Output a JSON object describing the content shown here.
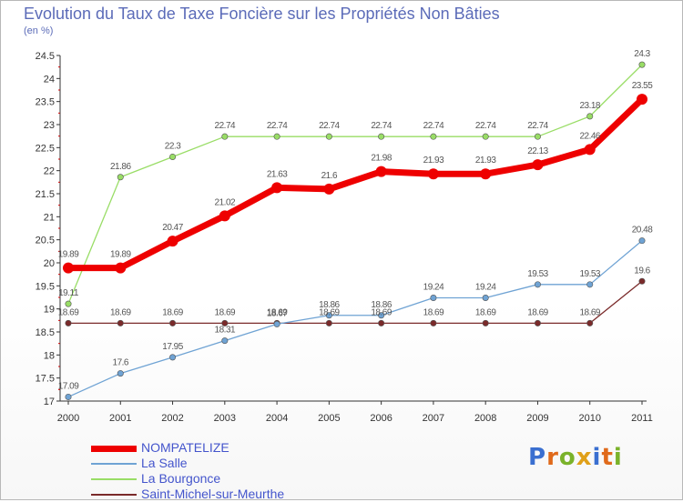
{
  "title": "Evolution du Taux de Taxe Foncière sur les Propriétés Non Bâties",
  "subtitle": "(en %)",
  "logo": {
    "text": "Proxiti",
    "letter_colors": [
      "#3a6fd0",
      "#e06a1b",
      "#7ab22a",
      "#e0a018",
      "#3a6fd0",
      "#e06a1b",
      "#7ab22a"
    ]
  },
  "chart_data": {
    "type": "line",
    "x": [
      "2000",
      "2001",
      "2002",
      "2003",
      "2004",
      "2005",
      "2006",
      "2007",
      "2008",
      "2009",
      "2010",
      "2011"
    ],
    "ylim": [
      17,
      24.5
    ],
    "yticks": [
      "17",
      "17.5",
      "18",
      "18.5",
      "19",
      "19.5",
      "20",
      "20.5",
      "21",
      "21.5",
      "22",
      "22.5",
      "23",
      "23.5",
      "24",
      "24.5"
    ],
    "legend_position": "bottom-left",
    "series": [
      {
        "name": "NOMPATELIZE",
        "color": "#ee0000",
        "values": [
          19.89,
          19.89,
          20.47,
          21.02,
          21.63,
          21.6,
          21.98,
          21.93,
          21.93,
          22.13,
          22.46,
          23.55
        ],
        "labels": [
          "19.89",
          "19.89",
          "20.47",
          "21.02",
          "21.63",
          "21.6",
          "21.98",
          "21.93",
          "21.93",
          "22.13",
          "22.46",
          "23.55"
        ]
      },
      {
        "name": "La Salle",
        "color": "#6fa3d4",
        "values": [
          17.09,
          17.6,
          17.95,
          18.31,
          18.67,
          18.86,
          18.86,
          19.24,
          19.24,
          19.53,
          19.53,
          20.48
        ],
        "labels": [
          "17.09",
          "17.6",
          "17.95",
          "18.31",
          "18.67",
          "18.86",
          "18.86",
          "19.24",
          "19.24",
          "19.53",
          "19.53",
          "20.48"
        ]
      },
      {
        "name": "La Bourgonce",
        "color": "#99dd66",
        "values": [
          19.11,
          21.86,
          22.3,
          22.74,
          22.74,
          22.74,
          22.74,
          22.74,
          22.74,
          22.74,
          23.18,
          24.3
        ],
        "labels": [
          "19.11",
          "21.86",
          "22.3",
          "22.74",
          "22.74",
          "22.74",
          "22.74",
          "22.74",
          "22.74",
          "22.74",
          "23.18",
          "24.3"
        ]
      },
      {
        "name": "Saint-Michel-sur-Meurthe",
        "color": "#7a2a2a",
        "values": [
          18.69,
          18.69,
          18.69,
          18.69,
          18.69,
          18.69,
          18.69,
          18.69,
          18.69,
          18.69,
          18.69,
          19.6
        ],
        "labels": [
          "18.69",
          "18.69",
          "18.69",
          "18.69",
          "18.69",
          "18.69",
          "18.69",
          "18.69",
          "18.69",
          "18.69",
          "18.69",
          "19.6"
        ]
      }
    ]
  }
}
